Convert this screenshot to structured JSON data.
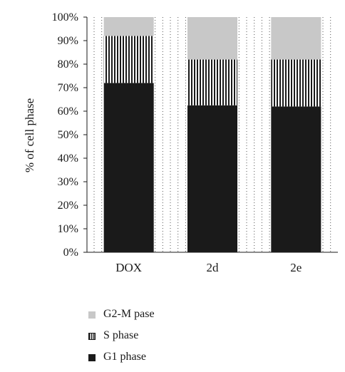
{
  "chart_data": {
    "type": "bar",
    "stacked": true,
    "percent": true,
    "ylabel": "% of cell phase",
    "xlabel": "",
    "ylim": [
      0,
      100
    ],
    "yticks": [
      "0%",
      "10%",
      "20%",
      "30%",
      "40%",
      "50%",
      "60%",
      "70%",
      "80%",
      "90%",
      "100%"
    ],
    "categories": [
      "DOX",
      "2d",
      "2e"
    ],
    "series": [
      {
        "name": "G1 phase",
        "values": [
          72,
          62.5,
          62
        ],
        "color": "#1a1a1a",
        "pattern": "solid"
      },
      {
        "name": "S phase",
        "values": [
          20,
          19.5,
          20
        ],
        "color": "#1a1a1a",
        "pattern": "vertical-stripes"
      },
      {
        "name": "G2-M pase",
        "values": [
          8,
          18,
          18
        ],
        "color": "#c8c8c8",
        "pattern": "solid"
      }
    ],
    "legend_order": [
      "G2-M pase",
      "S phase",
      "G1 phase"
    ],
    "grid": "dotted-vertical",
    "legend_position": "bottom"
  }
}
